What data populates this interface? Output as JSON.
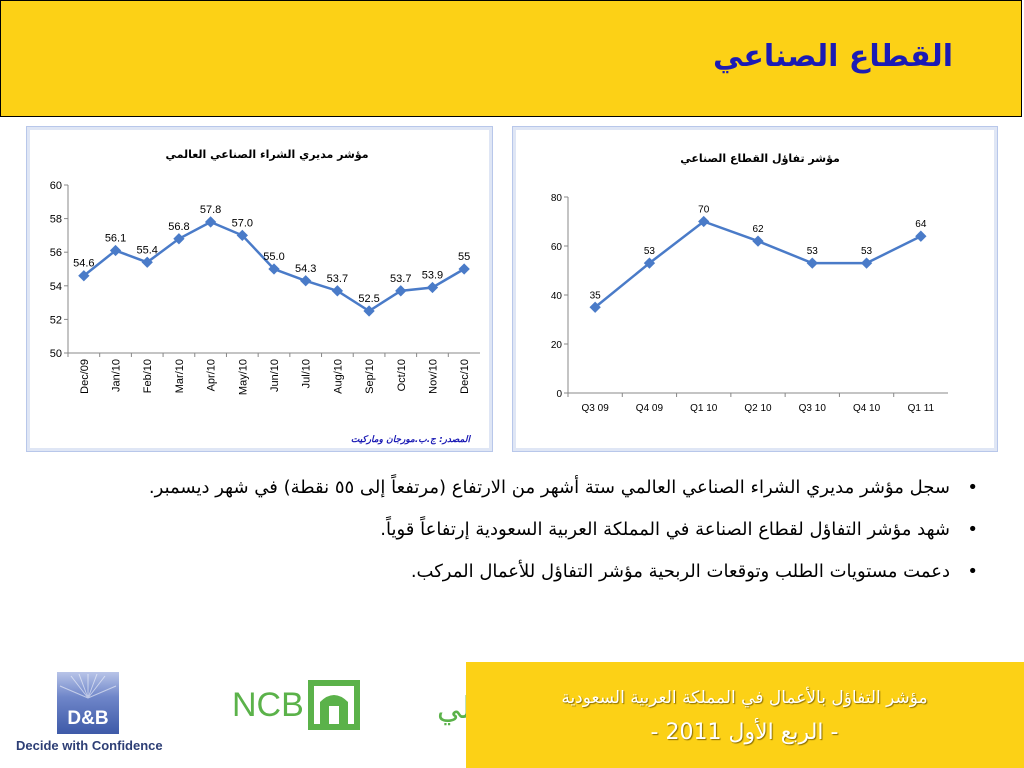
{
  "header": {
    "title": "القطاع الصناعي"
  },
  "left_chart": {
    "source": "المصدر: ج.ب.مورجان وماركيت"
  },
  "chart_data": [
    {
      "type": "line",
      "title": "مؤشر مديري الشراء الصناعي العالمي",
      "categories": [
        "Dec/09",
        "Jan/10",
        "Feb/10",
        "Mar/10",
        "Apr/10",
        "May/10",
        "Jun/10",
        "Jul/10",
        "Aug/10",
        "Sep/10",
        "Oct/10",
        "Nov/10",
        "Dec/10"
      ],
      "values": [
        54.6,
        56.1,
        55.4,
        56.8,
        57.8,
        57.0,
        55.0,
        54.3,
        53.7,
        52.5,
        53.7,
        53.9,
        55
      ],
      "labels": [
        "54.6",
        "56.1",
        "55.4",
        "56.8",
        "57.8",
        "57.0",
        "55.0",
        "54.3",
        "53.7",
        "52.5",
        "53.7",
        "53.9",
        "55"
      ],
      "ylim": [
        50,
        60
      ],
      "yticks": [
        "50",
        "52",
        "54",
        "56",
        "58",
        "60"
      ],
      "grid": false,
      "color": "#4a7bc8"
    },
    {
      "type": "line",
      "title": "مؤشر تفاؤل القطاع الصناعي",
      "categories": [
        "Q3 09",
        "Q4 09",
        "Q1 10",
        "Q2 10",
        "Q3 10",
        "Q4 10",
        "Q1 11"
      ],
      "values": [
        35,
        53,
        70,
        62,
        53,
        53,
        64
      ],
      "labels": [
        "35",
        "53",
        "70",
        "62",
        "53",
        "53",
        "64"
      ],
      "ylim": [
        0,
        80
      ],
      "yticks": [
        "0",
        "20",
        "40",
        "60",
        "80"
      ],
      "grid": false,
      "color": "#4a7bc8"
    }
  ],
  "bullets": [
    {
      "marker": "•",
      "text": "سجل مؤشر مديري الشراء الصناعي العالمي ستة أشهر من الارتفاع (مرتفعاً إلى ٥٥ نقطة) في شهر ديسمبر."
    },
    {
      "marker": "•",
      "text": "شهد مؤشر التفاؤل لقطاع الصناعة في المملكة العربية السعودية إرتفاعاً قوياً."
    },
    {
      "marker": "•",
      "text": "دعمت مستويات الطلب وتوقعات الربحية مؤشر التفاؤل للأعمال المركب."
    }
  ],
  "footer": {
    "line1": "مؤشر التفاؤل بالأعمال في المملكة العربية السعودية",
    "line2": "- الربع الأول 2011 -",
    "db_logo": "D&B",
    "db_tagline": "Decide with Confidence",
    "ncb_latin": "NCB",
    "ncb_arabic": "الأهلي"
  },
  "colors": {
    "header_bg": "#fcd116",
    "title": "#1b1bb5",
    "series": "#4a7bc8",
    "ncb_green": "#5bb24a",
    "db_blue": "#2d3e75"
  }
}
